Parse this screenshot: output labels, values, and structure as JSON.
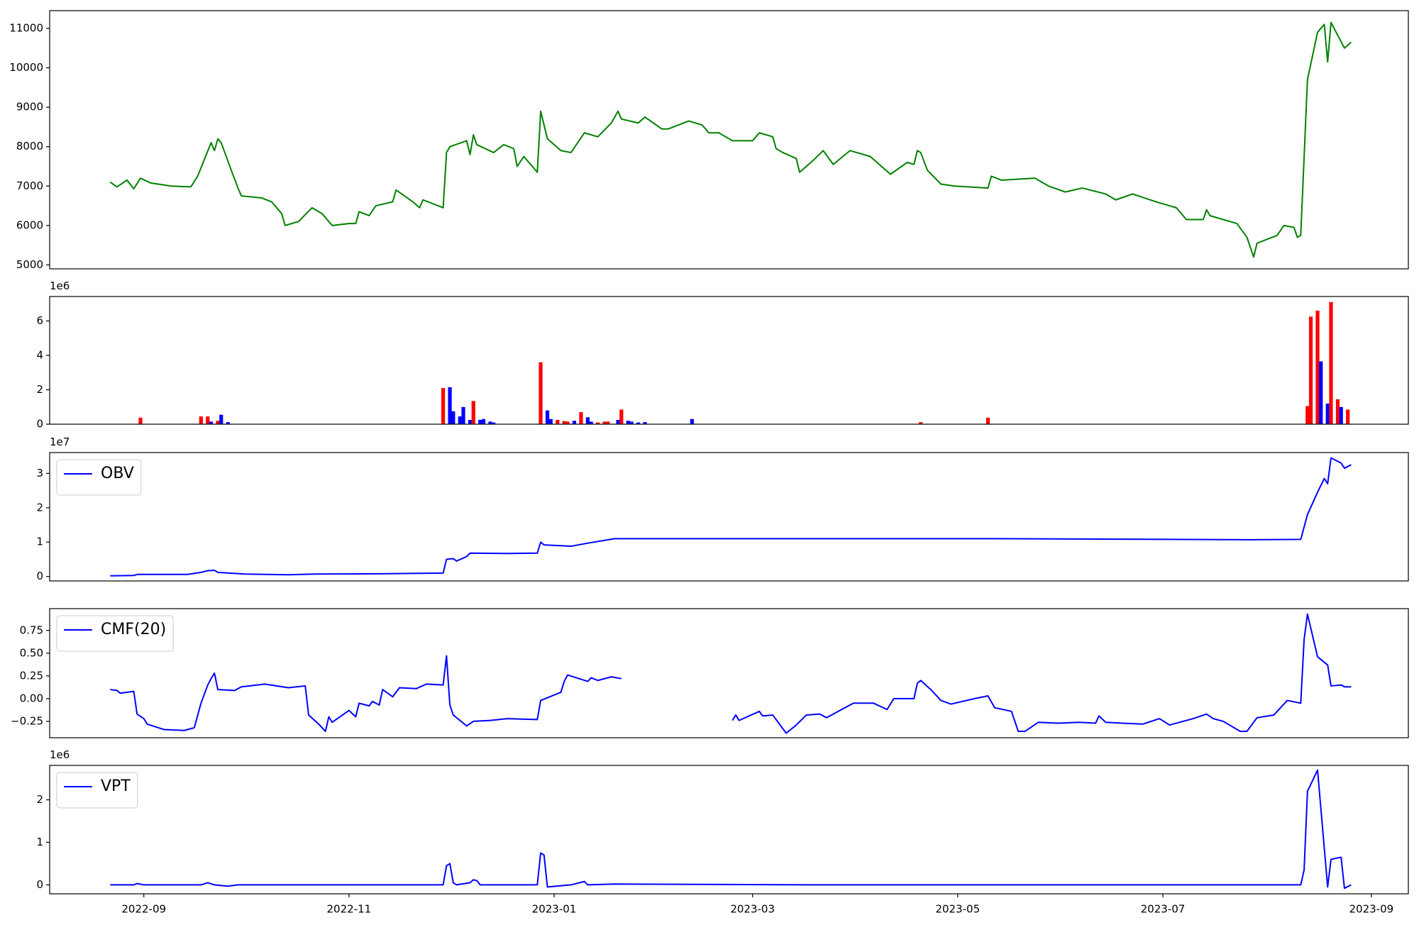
{
  "chart_data": [
    {
      "type": "line",
      "color": "#008000",
      "xlim": [
        19208,
        19612
      ],
      "ylim": [
        4900,
        11450
      ],
      "yticks": [
        5000,
        6000,
        7000,
        8000,
        9000,
        10000,
        11000
      ],
      "x": [
        19226,
        19228,
        19231,
        19233,
        19235,
        19238,
        19244,
        19250,
        19252,
        19256,
        19257,
        19258,
        19259,
        19262,
        19264,
        19265,
        19271,
        19274,
        19277,
        19278,
        19282,
        19286,
        19289,
        19292,
        19297,
        19299,
        19300,
        19303,
        19305,
        19310,
        19311,
        19316,
        19318,
        19319,
        19325,
        19326,
        19327,
        19332,
        19333,
        19334,
        19335,
        19340,
        19343,
        19346,
        19347,
        19349,
        19353,
        19354,
        19356,
        19360,
        19363,
        19367,
        19371,
        19375,
        19377,
        19378,
        19383,
        19385,
        19390,
        19392,
        19398,
        19402,
        19404,
        19407,
        19411,
        19417,
        19419,
        19423,
        19424,
        19426,
        19430,
        19431,
        19435,
        19438,
        19441,
        19446,
        19452,
        19458,
        19463,
        19465,
        19466,
        19467,
        19469,
        19473,
        19477,
        19487,
        19488,
        19491,
        19501,
        19505,
        19510,
        19515,
        19522,
        19525,
        19530,
        19537,
        19543,
        19546,
        19551,
        19552,
        19553,
        19561,
        19564,
        19566,
        19567,
        19573,
        19575,
        19578,
        19579,
        19580,
        19582,
        19585,
        19587,
        19588,
        19589,
        19593,
        19595
      ],
      "values": [
        7100,
        6980,
        7150,
        6930,
        7200,
        7080,
        7000,
        6980,
        7250,
        8100,
        7900,
        8200,
        8100,
        7400,
        6950,
        6750,
        6700,
        6600,
        6300,
        6000,
        6100,
        6450,
        6300,
        6000,
        6050,
        6050,
        6350,
        6250,
        6500,
        6600,
        6900,
        6600,
        6450,
        6650,
        6450,
        7850,
        8000,
        8150,
        7800,
        8300,
        8050,
        7850,
        8050,
        7950,
        7500,
        7750,
        7350,
        8900,
        8200,
        7900,
        7850,
        8350,
        8250,
        8600,
        8900,
        8700,
        8600,
        8750,
        8450,
        8450,
        8650,
        8550,
        8350,
        8350,
        8150,
        8150,
        8350,
        8250,
        7950,
        7850,
        7700,
        7350,
        7650,
        7900,
        7550,
        7900,
        7750,
        7300,
        7600,
        7550,
        7900,
        7850,
        7400,
        7050,
        7000,
        6950,
        7250,
        7150,
        7200,
        7000,
        6850,
        6950,
        6800,
        6650,
        6800,
        6600,
        6450,
        6150,
        6150,
        6400,
        6250,
        6050,
        5700,
        5200,
        5550,
        5750,
        6000,
        5950,
        5700,
        5750,
        9700,
        10900,
        11100,
        10150,
        11150,
        10500,
        10650
      ]
    },
    {
      "type": "bar",
      "offset_text": "1e6",
      "xlim": [
        19208,
        19612
      ],
      "ylim": [
        0,
        7.42
      ],
      "yticks": [
        0,
        2,
        4,
        6
      ],
      "x": [
        19235,
        19253,
        19255,
        19256,
        19258,
        19259,
        19261,
        19325,
        19327,
        19328,
        19330,
        19331,
        19333,
        19334,
        19336,
        19337,
        19339,
        19340,
        19354,
        19356,
        19357,
        19359,
        19361,
        19362,
        19364,
        19366,
        19368,
        19369,
        19371,
        19373,
        19374,
        19377,
        19378,
        19380,
        19381,
        19383,
        19385,
        19399,
        19467,
        19487,
        19582,
        19583,
        19585,
        19586,
        19588,
        19589,
        19591,
        19592,
        19594
      ],
      "values": [
        0.38,
        0.45,
        0.45,
        0.15,
        0.2,
        0.55,
        0.12,
        2.1,
        2.15,
        0.75,
        0.45,
        1.0,
        0.25,
        1.35,
        0.25,
        0.3,
        0.15,
        0.1,
        3.6,
        0.8,
        0.3,
        0.25,
        0.18,
        0.15,
        0.2,
        0.7,
        0.4,
        0.15,
        0.1,
        0.15,
        0.15,
        0.25,
        0.85,
        0.2,
        0.15,
        0.1,
        0.12,
        0.3,
        0.12,
        0.38,
        1.05,
        6.25,
        6.6,
        3.65,
        1.2,
        7.1,
        1.45,
        1.0,
        0.85
      ],
      "colors": [
        "#ff0000",
        "#ff0000",
        "#ff0000",
        "#0000ff",
        "#ff0000",
        "#0000ff",
        "#0000ff",
        "#ff0000",
        "#0000ff",
        "#0000ff",
        "#0000ff",
        "#0000ff",
        "#0000ff",
        "#ff0000",
        "#0000ff",
        "#0000ff",
        "#0000ff",
        "#0000ff",
        "#ff0000",
        "#0000ff",
        "#0000ff",
        "#ff0000",
        "#ff0000",
        "#ff0000",
        "#0000ff",
        "#ff0000",
        "#0000ff",
        "#0000ff",
        "#ff0000",
        "#ff0000",
        "#ff0000",
        "#0000ff",
        "#ff0000",
        "#0000ff",
        "#0000ff",
        "#0000ff",
        "#0000ff",
        "#0000ff",
        "#ff0000",
        "#ff0000",
        "#ff0000",
        "#ff0000",
        "#ff0000",
        "#0000ff",
        "#0000ff",
        "#ff0000",
        "#ff0000",
        "#0000ff",
        "#ff0000"
      ]
    },
    {
      "type": "line",
      "offset_text": "1e7",
      "legend": "upper left",
      "xlim": [
        19208,
        19612
      ],
      "ylim": [
        -0.13,
        3.605
      ],
      "yticks": [
        0,
        1,
        2,
        3
      ],
      "x": [
        19226,
        19233,
        19234,
        19249,
        19253,
        19255,
        19257,
        19258,
        19266,
        19279,
        19287,
        19306,
        19325,
        19326,
        19328,
        19329,
        19332,
        19333,
        19344,
        19353,
        19354,
        19355,
        19363,
        19368,
        19376,
        19398,
        19436,
        19489,
        19565,
        19580,
        19582,
        19585,
        19587,
        19588,
        19589,
        19592,
        19593,
        19595
      ],
      "series": [
        {
          "name": "OBV",
          "color": "#0000ff",
          "values": [
            0.02,
            0.03,
            0.06,
            0.06,
            0.12,
            0.17,
            0.18,
            0.12,
            0.07,
            0.05,
            0.07,
            0.08,
            0.1,
            0.5,
            0.52,
            0.45,
            0.58,
            0.68,
            0.67,
            0.68,
            1.0,
            0.92,
            0.88,
            0.97,
            1.1,
            1.1,
            1.1,
            1.1,
            1.07,
            1.08,
            1.8,
            2.45,
            2.85,
            2.7,
            3.45,
            3.3,
            3.15,
            3.25
          ]
        }
      ]
    },
    {
      "type": "line",
      "legend": "upper left",
      "xlim": [
        19208,
        19612
      ],
      "ylim": [
        -0.43,
        0.99
      ],
      "yticks": [
        {
          "value": -0.25,
          "label": "−0.25"
        },
        {
          "value": 0,
          "label": "0.00"
        },
        0.25,
        {
          "value": 0.5,
          "label": "0.50"
        },
        0.75
      ],
      "x": [
        19226,
        19228,
        19229,
        19233,
        19234,
        19236,
        19237,
        19242,
        19248,
        19251,
        19253,
        19255,
        19256,
        19257,
        19258,
        19263,
        19265,
        19272,
        19279,
        19284,
        19285,
        19288,
        19290,
        19291,
        19292,
        19297,
        19299,
        19300,
        19303,
        19304,
        19306,
        19307,
        19310,
        19312,
        19317,
        19320,
        19325,
        19326,
        19327,
        19328,
        19332,
        19334,
        19339,
        19344,
        19353,
        19354,
        19360,
        19361,
        19362,
        19368,
        19369,
        19371,
        19375,
        19378,
        19400,
        19411,
        19412,
        19413,
        19419,
        19420,
        19423,
        19425,
        19427,
        19430,
        19433,
        19437,
        19439,
        19447,
        19453,
        19457,
        19459,
        19465,
        19466,
        19467,
        19470,
        19473,
        19476,
        19483,
        19487,
        19489,
        19494,
        19496,
        19498,
        19502,
        19508,
        19514,
        19519,
        19520,
        19522,
        19527,
        19533,
        19538,
        19541,
        19548,
        19552,
        19554,
        19557,
        19562,
        19564,
        19567,
        19572,
        19574,
        19576,
        19580,
        19581,
        19582,
        19585,
        19588,
        19589,
        19592,
        19593,
        19595
      ],
      "series": [
        {
          "name": "CMF(20)",
          "color": "#0000ff",
          "values": [
            0.1,
            0.09,
            0.06,
            0.08,
            -0.17,
            -0.22,
            -0.28,
            -0.34,
            -0.35,
            -0.32,
            -0.05,
            0.15,
            0.22,
            0.28,
            0.1,
            0.09,
            0.13,
            0.16,
            0.12,
            0.14,
            -0.18,
            -0.28,
            -0.36,
            -0.2,
            -0.26,
            -0.13,
            -0.2,
            -0.05,
            -0.08,
            -0.03,
            -0.07,
            0.1,
            0.02,
            0.12,
            0.11,
            0.16,
            0.15,
            0.47,
            -0.07,
            -0.18,
            -0.3,
            -0.25,
            -0.24,
            -0.22,
            -0.23,
            -0.02,
            0.07,
            0.19,
            0.26,
            0.19,
            0.23,
            0.2,
            0.24,
            0.22,
            null,
            -0.24,
            -0.18,
            -0.24,
            -0.14,
            -0.19,
            -0.18,
            -0.28,
            -0.38,
            -0.29,
            -0.18,
            -0.17,
            -0.21,
            -0.05,
            -0.05,
            -0.12,
            0,
            0,
            0.17,
            0.2,
            0.1,
            -0.02,
            -0.06,
            0,
            0.03,
            -0.1,
            -0.14,
            -0.36,
            -0.36,
            -0.26,
            -0.27,
            -0.26,
            -0.27,
            -0.19,
            -0.26,
            -0.27,
            -0.28,
            -0.22,
            -0.29,
            -0.22,
            -0.17,
            -0.22,
            -0.25,
            -0.36,
            -0.36,
            -0.21,
            -0.18,
            -0.1,
            -0.02,
            -0.05,
            0.65,
            0.93,
            0.46,
            0.37,
            0.14,
            0.15,
            0.13,
            0.13
          ]
        }
      ]
    },
    {
      "type": "line",
      "offset_text": "1e6",
      "legend": "upper left",
      "xlim": [
        19208,
        19612
      ],
      "ylim": [
        -0.21,
        2.81
      ],
      "yticks": [
        0,
        1,
        2
      ],
      "xticks": [
        {
          "value": 19236,
          "label": "2022-09"
        },
        {
          "value": 19297,
          "label": "2022-11"
        },
        {
          "value": 19358,
          "label": "2023-01"
        },
        {
          "value": 19417,
          "label": "2023-03"
        },
        {
          "value": 19478,
          "label": "2023-05"
        },
        {
          "value": 19539,
          "label": "2023-07"
        },
        {
          "value": 19601,
          "label": "2023-09"
        }
      ],
      "x": [
        19226,
        19233,
        19234,
        19236,
        19253,
        19255,
        19257,
        19261,
        19264,
        19325,
        19326,
        19327,
        19328,
        19329,
        19333,
        19334,
        19335,
        19336,
        19353,
        19354,
        19355,
        19356,
        19363,
        19367,
        19368,
        19376,
        19436,
        19580,
        19581,
        19582,
        19585,
        19588,
        19589,
        19592,
        19593,
        19595
      ],
      "series": [
        {
          "name": "VPT",
          "color": "#0000ff",
          "values": [
            0,
            0,
            0.03,
            0,
            0,
            0.05,
            0,
            -0.03,
            0,
            0,
            0.45,
            0.5,
            0.05,
            0,
            0.05,
            0.12,
            0.1,
            0,
            0,
            0.75,
            0.7,
            -0.05,
            0,
            0.08,
            0,
            0.02,
            0,
            0,
            0.35,
            2.2,
            2.7,
            -0.05,
            0.6,
            0.65,
            -0.08,
            0
          ]
        }
      ]
    }
  ]
}
